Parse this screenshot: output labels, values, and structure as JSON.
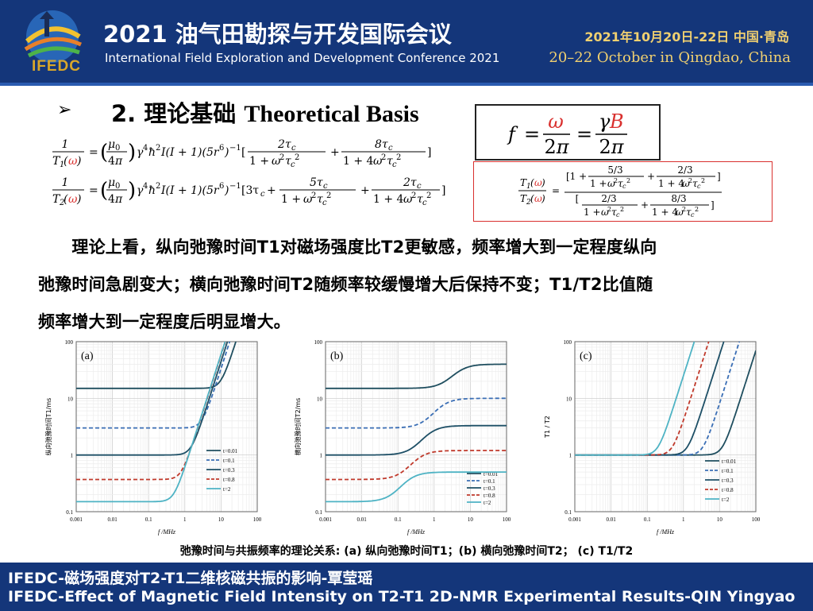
{
  "header": {
    "logo_text": "IFEDC",
    "title_cn": "2021 油气田勘探与开发国际会议",
    "title_en": "International Field Exploration and Development Conference 2021",
    "date_cn": "2021年10月20日-22日   中国·青岛",
    "date_en": "20–22 October in Qingdao, China"
  },
  "section": {
    "bullet": "➢",
    "title_cn": "2. 理论基础 ",
    "title_en": "Theoretical Basis"
  },
  "paragraph": [
    "　　理论上看，纵向弛豫时间T1对磁场强度比T2更敏感，频率增大到一定程度纵向",
    "弛豫时间急剧变大；横向弛豫时间T2随频率较缓慢增大后保持不变；T1/T2比值随",
    "频率增大到一定程度后明显增大。"
  ],
  "colors": {
    "header_bg": "#14367a",
    "accent_red": "#d9302e",
    "series": [
      "#1f4e5f",
      "#3a6eb5",
      "#1d4f66",
      "#c0392b",
      "#4eb3c4"
    ]
  },
  "chart_data": [
    {
      "type": "line",
      "panel_label": "(a)",
      "xlabel": "f /MHz",
      "ylabel": "纵向弛豫时间T1/ms",
      "xscale": "log",
      "yscale": "log",
      "xlim": [
        0.001,
        100
      ],
      "ylim": [
        0.1,
        100
      ],
      "xticks": [
        "0.001",
        "0.01",
        "0.1",
        "1",
        "10",
        "100"
      ],
      "yticks": [
        "0.1",
        "1",
        "10",
        "100"
      ],
      "legend_position": "right",
      "series": [
        {
          "name": "t=0.01",
          "plateau": 15,
          "knee": 10,
          "style": "solid"
        },
        {
          "name": "t=0.1",
          "plateau": 3,
          "knee": 3,
          "style": "dashed"
        },
        {
          "name": "t=0.3",
          "plateau": 1,
          "knee": 1.5,
          "style": "solid"
        },
        {
          "name": "t=0.8",
          "plateau": 0.37,
          "knee": 0.8,
          "style": "dashed"
        },
        {
          "name": "t=2",
          "plateau": 0.15,
          "knee": 0.5,
          "style": "solid"
        }
      ]
    },
    {
      "type": "line",
      "panel_label": "(b)",
      "xlabel": "f /MHz",
      "ylabel": "横向弛豫时间T2/ms",
      "xscale": "log",
      "yscale": "log",
      "xlim": [
        0.001,
        100
      ],
      "ylim": [
        0.1,
        100
      ],
      "xticks": [
        "0.001",
        "0.01",
        "0.1",
        "1",
        "10",
        "100"
      ],
      "yticks": [
        "0.1",
        "1",
        "10",
        "100"
      ],
      "legend_position": "bottom-right",
      "series": [
        {
          "name": "t=0.01",
          "low": 15,
          "high": 40,
          "style": "solid"
        },
        {
          "name": "t=0.1",
          "low": 3,
          "high": 10,
          "style": "dashed"
        },
        {
          "name": "t=0.3",
          "low": 1,
          "high": 3.3,
          "style": "solid"
        },
        {
          "name": "t=0.8",
          "low": 0.37,
          "high": 1.2,
          "style": "dashed"
        },
        {
          "name": "t=2",
          "low": 0.15,
          "high": 0.5,
          "style": "solid"
        }
      ]
    },
    {
      "type": "line",
      "panel_label": "(c)",
      "xlabel": "f /MHz",
      "ylabel": "T1 / T2",
      "xscale": "log",
      "yscale": "log",
      "xlim": [
        0.001,
        100
      ],
      "ylim": [
        0.1,
        100
      ],
      "xticks": [
        "0.001",
        "0.01",
        "0.1",
        "1",
        "10",
        "100"
      ],
      "yticks": [
        "0.1",
        "1",
        "10",
        "100"
      ],
      "legend_position": "right",
      "series": [
        {
          "name": "t=0.01",
          "knee": 12,
          "style": "solid"
        },
        {
          "name": "t=0.1",
          "knee": 3.5,
          "style": "dashed"
        },
        {
          "name": "t=0.3",
          "knee": 1.3,
          "style": "solid"
        },
        {
          "name": "t=0.8",
          "knee": 0.5,
          "style": "dashed"
        },
        {
          "name": "t=2",
          "knee": 0.2,
          "style": "solid"
        }
      ]
    }
  ],
  "caption": "弛豫时间与共振频率的理论关系: (a) 纵向弛豫时间T1；(b) 横向弛豫时间T2；  (c) T1/T2",
  "footer": {
    "line1": "IFEDC-磁场强度对T2-T1二维核磁共振的影响-覃莹瑶",
    "line2": "IFEDC-Effect of Magnetic Field Intensity on T2-T1 2D-NMR Experimental Results-QIN Yingyao"
  }
}
